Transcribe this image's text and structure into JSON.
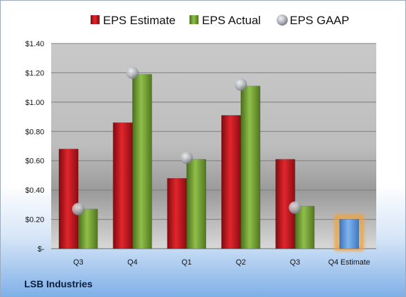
{
  "chart_data": {
    "type": "bar",
    "categories": [
      "Q3",
      "Q4",
      "Q1",
      "Q2",
      "Q3",
      "Q4 Estimate"
    ],
    "series": [
      {
        "name": "EPS Estimate",
        "values": [
          0.68,
          0.86,
          0.48,
          0.91,
          0.61,
          null
        ],
        "color": "#c0141b"
      },
      {
        "name": "EPS Actual",
        "values": [
          0.27,
          1.19,
          0.61,
          1.11,
          0.29,
          null
        ],
        "color": "#6e9a32"
      },
      {
        "name": "EPS GAAP",
        "values": [
          0.27,
          1.2,
          0.62,
          1.12,
          0.28,
          null
        ],
        "color": "#a8adb5"
      },
      {
        "name": "",
        "values": [
          null,
          null,
          null,
          null,
          null,
          0.2
        ],
        "color": "#5d96db"
      }
    ],
    "y_ticks": [
      "$-",
      "$0.20",
      "$0.40",
      "$0.60",
      "$0.80",
      "$1.00",
      "$1.20",
      "$1.40"
    ],
    "ylim": [
      0,
      1.4
    ],
    "grid": true,
    "legend": "top",
    "xlabel": "",
    "ylabel": ""
  },
  "footer": {
    "company": "LSB Industries"
  }
}
